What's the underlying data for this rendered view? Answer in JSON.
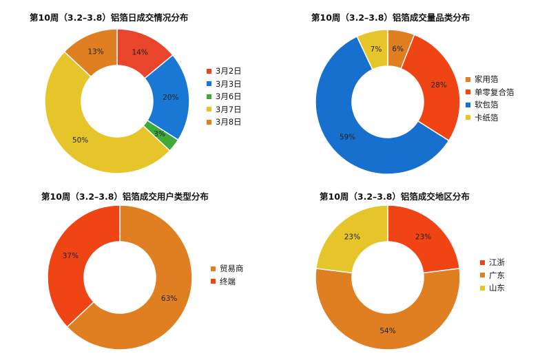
{
  "chart_data": [
    {
      "type": "pie",
      "variant": "donut",
      "title": "第10周（3.2–3.8）铝箔日成交情况分布",
      "series": [
        {
          "name": "3月2日",
          "value": 14,
          "label": "14%",
          "color": "#E8452A"
        },
        {
          "name": "3月3日",
          "value": 20,
          "label": "20%",
          "color": "#1878D4"
        },
        {
          "name": "3月6日",
          "value": 3,
          "label": "3%",
          "color": "#3DAA3A"
        },
        {
          "name": "3月7日",
          "value": 50,
          "label": "50%",
          "color": "#E6C52A"
        },
        {
          "name": "3月8日",
          "value": 13,
          "label": "13%",
          "color": "#E07E22"
        }
      ],
      "legend_position": "right"
    },
    {
      "type": "pie",
      "variant": "donut",
      "title": "第10周（3.2–3.8）铝箔成交量品类分布",
      "series": [
        {
          "name": "家用箔",
          "value": 6,
          "label": "6%",
          "color": "#E07E22"
        },
        {
          "name": "单零复合箔",
          "value": 28,
          "label": "28%",
          "color": "#F04414"
        },
        {
          "name": "软包箔",
          "value": 59,
          "label": "59%",
          "color": "#1870CE"
        },
        {
          "name": "卡纸箔",
          "value": 7,
          "label": "7%",
          "color": "#E6C52A"
        }
      ],
      "legend_position": "right"
    },
    {
      "type": "pie",
      "variant": "donut",
      "title": "第10周（3.2–3.8）铝箔成交用户类型分布",
      "series": [
        {
          "name": "贸易商",
          "value": 63,
          "label": "63%",
          "color": "#E07E22"
        },
        {
          "name": "终端",
          "value": 37,
          "label": "37%",
          "color": "#F04414"
        }
      ],
      "legend_position": "right"
    },
    {
      "type": "pie",
      "variant": "donut",
      "title": "第10周（3.2–3.8）铝箔成交地区分布",
      "series": [
        {
          "name": "江浙",
          "value": 23,
          "label": "23%",
          "color": "#F04414"
        },
        {
          "name": "广东",
          "value": 54,
          "label": "54%",
          "color": "#E07E22"
        },
        {
          "name": "山东",
          "value": 23,
          "label": "23%",
          "color": "#E6C52A"
        }
      ],
      "legend_position": "right"
    }
  ]
}
